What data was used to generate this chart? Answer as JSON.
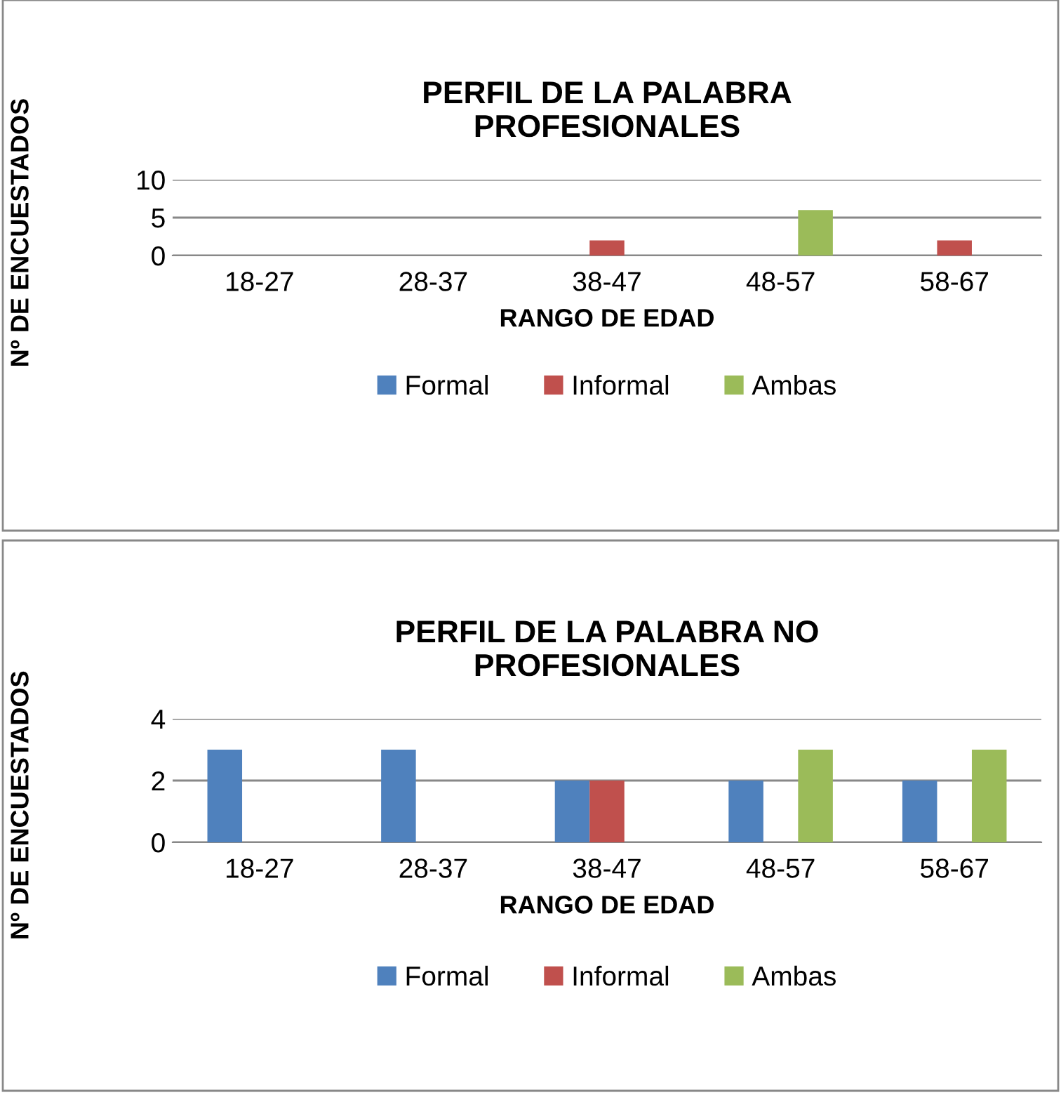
{
  "chart_data": [
    {
      "type": "bar",
      "title": "PERFIL DE LA PALABRA\nPROFESIONALES",
      "xlabel": "RANGO DE EDAD",
      "ylabel": "Nº DE ENCUESTADOS",
      "categories": [
        "18-27",
        "28-37",
        "38-47",
        "48-57",
        "58-67"
      ],
      "series": [
        {
          "name": "Formal",
          "color": "#4f81bd",
          "values": [
            0,
            0,
            0,
            0,
            0
          ]
        },
        {
          "name": "Informal",
          "color": "#c0504d",
          "values": [
            0,
            0,
            2,
            0,
            2
          ]
        },
        {
          "name": "Ambas",
          "color": "#9bbb59",
          "values": [
            0,
            0,
            0,
            6,
            0
          ]
        }
      ],
      "ylim": [
        0,
        10
      ],
      "yticks": [
        0,
        5,
        10
      ],
      "grid": "y",
      "legend": "bottom"
    },
    {
      "type": "bar",
      "title": "PERFIL DE LA PALABRA NO\nPROFESIONALES",
      "xlabel": "RANGO DE EDAD",
      "ylabel": "Nº DE ENCUESTADOS",
      "categories": [
        "18-27",
        "28-37",
        "38-47",
        "48-57",
        "58-67"
      ],
      "series": [
        {
          "name": "Formal",
          "color": "#4f81bd",
          "values": [
            3,
            3,
            2,
            2,
            2
          ]
        },
        {
          "name": "Informal",
          "color": "#c0504d",
          "values": [
            0,
            0,
            2,
            0,
            0
          ]
        },
        {
          "name": "Ambas",
          "color": "#9bbb59",
          "values": [
            0,
            0,
            0,
            3,
            3
          ]
        }
      ],
      "ylim": [
        0,
        4
      ],
      "yticks": [
        0,
        2,
        4
      ],
      "grid": "y",
      "legend": "bottom"
    }
  ]
}
